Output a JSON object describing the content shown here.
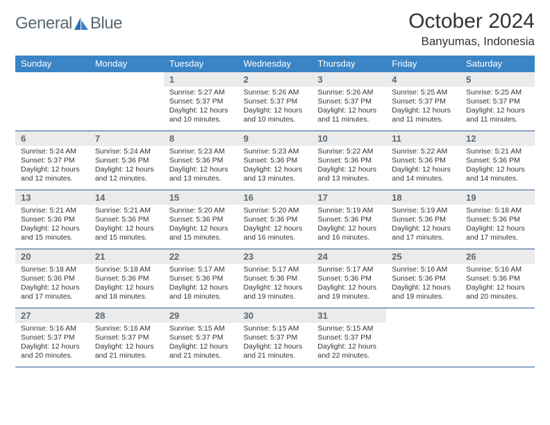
{
  "brand": {
    "general": "General",
    "blue": "Blue"
  },
  "title": "October 2024",
  "location": "Banyumas, Indonesia",
  "colors": {
    "header_bar": "#3b85c6",
    "week_divider": "#285a8f",
    "daynum_bg": "#ebebeb",
    "daynum_text": "#5a6770",
    "body_text": "#333333",
    "logo_text": "#5a6770",
    "logo_accent": "#3b85c6"
  },
  "dayNames": [
    "Sunday",
    "Monday",
    "Tuesday",
    "Wednesday",
    "Thursday",
    "Friday",
    "Saturday"
  ],
  "weeks": [
    [
      null,
      null,
      {
        "n": "1",
        "sunrise": "Sunrise: 5:27 AM",
        "sunset": "Sunset: 5:37 PM",
        "daylight": "Daylight: 12 hours and 10 minutes."
      },
      {
        "n": "2",
        "sunrise": "Sunrise: 5:26 AM",
        "sunset": "Sunset: 5:37 PM",
        "daylight": "Daylight: 12 hours and 10 minutes."
      },
      {
        "n": "3",
        "sunrise": "Sunrise: 5:26 AM",
        "sunset": "Sunset: 5:37 PM",
        "daylight": "Daylight: 12 hours and 11 minutes."
      },
      {
        "n": "4",
        "sunrise": "Sunrise: 5:25 AM",
        "sunset": "Sunset: 5:37 PM",
        "daylight": "Daylight: 12 hours and 11 minutes."
      },
      {
        "n": "5",
        "sunrise": "Sunrise: 5:25 AM",
        "sunset": "Sunset: 5:37 PM",
        "daylight": "Daylight: 12 hours and 11 minutes."
      }
    ],
    [
      {
        "n": "6",
        "sunrise": "Sunrise: 5:24 AM",
        "sunset": "Sunset: 5:37 PM",
        "daylight": "Daylight: 12 hours and 12 minutes."
      },
      {
        "n": "7",
        "sunrise": "Sunrise: 5:24 AM",
        "sunset": "Sunset: 5:36 PM",
        "daylight": "Daylight: 12 hours and 12 minutes."
      },
      {
        "n": "8",
        "sunrise": "Sunrise: 5:23 AM",
        "sunset": "Sunset: 5:36 PM",
        "daylight": "Daylight: 12 hours and 13 minutes."
      },
      {
        "n": "9",
        "sunrise": "Sunrise: 5:23 AM",
        "sunset": "Sunset: 5:36 PM",
        "daylight": "Daylight: 12 hours and 13 minutes."
      },
      {
        "n": "10",
        "sunrise": "Sunrise: 5:22 AM",
        "sunset": "Sunset: 5:36 PM",
        "daylight": "Daylight: 12 hours and 13 minutes."
      },
      {
        "n": "11",
        "sunrise": "Sunrise: 5:22 AM",
        "sunset": "Sunset: 5:36 PM",
        "daylight": "Daylight: 12 hours and 14 minutes."
      },
      {
        "n": "12",
        "sunrise": "Sunrise: 5:21 AM",
        "sunset": "Sunset: 5:36 PM",
        "daylight": "Daylight: 12 hours and 14 minutes."
      }
    ],
    [
      {
        "n": "13",
        "sunrise": "Sunrise: 5:21 AM",
        "sunset": "Sunset: 5:36 PM",
        "daylight": "Daylight: 12 hours and 15 minutes."
      },
      {
        "n": "14",
        "sunrise": "Sunrise: 5:21 AM",
        "sunset": "Sunset: 5:36 PM",
        "daylight": "Daylight: 12 hours and 15 minutes."
      },
      {
        "n": "15",
        "sunrise": "Sunrise: 5:20 AM",
        "sunset": "Sunset: 5:36 PM",
        "daylight": "Daylight: 12 hours and 15 minutes."
      },
      {
        "n": "16",
        "sunrise": "Sunrise: 5:20 AM",
        "sunset": "Sunset: 5:36 PM",
        "daylight": "Daylight: 12 hours and 16 minutes."
      },
      {
        "n": "17",
        "sunrise": "Sunrise: 5:19 AM",
        "sunset": "Sunset: 5:36 PM",
        "daylight": "Daylight: 12 hours and 16 minutes."
      },
      {
        "n": "18",
        "sunrise": "Sunrise: 5:19 AM",
        "sunset": "Sunset: 5:36 PM",
        "daylight": "Daylight: 12 hours and 17 minutes."
      },
      {
        "n": "19",
        "sunrise": "Sunrise: 5:18 AM",
        "sunset": "Sunset: 5:36 PM",
        "daylight": "Daylight: 12 hours and 17 minutes."
      }
    ],
    [
      {
        "n": "20",
        "sunrise": "Sunrise: 5:18 AM",
        "sunset": "Sunset: 5:36 PM",
        "daylight": "Daylight: 12 hours and 17 minutes."
      },
      {
        "n": "21",
        "sunrise": "Sunrise: 5:18 AM",
        "sunset": "Sunset: 5:36 PM",
        "daylight": "Daylight: 12 hours and 18 minutes."
      },
      {
        "n": "22",
        "sunrise": "Sunrise: 5:17 AM",
        "sunset": "Sunset: 5:36 PM",
        "daylight": "Daylight: 12 hours and 18 minutes."
      },
      {
        "n": "23",
        "sunrise": "Sunrise: 5:17 AM",
        "sunset": "Sunset: 5:36 PM",
        "daylight": "Daylight: 12 hours and 19 minutes."
      },
      {
        "n": "24",
        "sunrise": "Sunrise: 5:17 AM",
        "sunset": "Sunset: 5:36 PM",
        "daylight": "Daylight: 12 hours and 19 minutes."
      },
      {
        "n": "25",
        "sunrise": "Sunrise: 5:16 AM",
        "sunset": "Sunset: 5:36 PM",
        "daylight": "Daylight: 12 hours and 19 minutes."
      },
      {
        "n": "26",
        "sunrise": "Sunrise: 5:16 AM",
        "sunset": "Sunset: 5:36 PM",
        "daylight": "Daylight: 12 hours and 20 minutes."
      }
    ],
    [
      {
        "n": "27",
        "sunrise": "Sunrise: 5:16 AM",
        "sunset": "Sunset: 5:37 PM",
        "daylight": "Daylight: 12 hours and 20 minutes."
      },
      {
        "n": "28",
        "sunrise": "Sunrise: 5:16 AM",
        "sunset": "Sunset: 5:37 PM",
        "daylight": "Daylight: 12 hours and 21 minutes."
      },
      {
        "n": "29",
        "sunrise": "Sunrise: 5:15 AM",
        "sunset": "Sunset: 5:37 PM",
        "daylight": "Daylight: 12 hours and 21 minutes."
      },
      {
        "n": "30",
        "sunrise": "Sunrise: 5:15 AM",
        "sunset": "Sunset: 5:37 PM",
        "daylight": "Daylight: 12 hours and 21 minutes."
      },
      {
        "n": "31",
        "sunrise": "Sunrise: 5:15 AM",
        "sunset": "Sunset: 5:37 PM",
        "daylight": "Daylight: 12 hours and 22 minutes."
      },
      null,
      null
    ]
  ]
}
